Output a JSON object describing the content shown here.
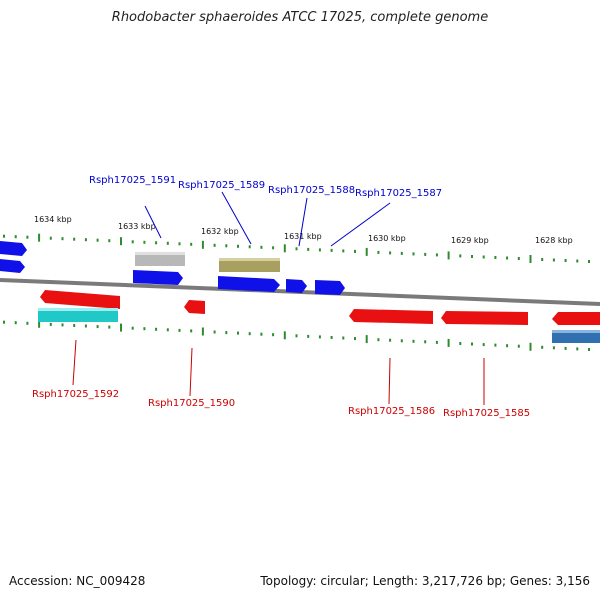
{
  "header": {
    "title": "Rhodobacter sphaeroides ATCC 17025, complete genome"
  },
  "footer": {
    "accession": "Accession: NC_009428",
    "stats": "Topology: circular; Length: 3,217,726 bp; Genes: 3,156"
  },
  "scale_labels": [
    "1634 kbp",
    "1633 kbp",
    "1632 kbp",
    "1631 kbp",
    "1630 kbp",
    "1629 kbp",
    "1628 kbp"
  ],
  "colors": {
    "plus_strand_label": "#0000cc",
    "minus_strand_label": "#cc0000",
    "backbone": "#808080",
    "tick": "#2e8b2e",
    "gene_blue": "#1010e8",
    "gene_red": "#e81010",
    "gene_gray": "#b8b8b8",
    "gene_olive": "#a8a060",
    "gene_cyan": "#20c8c8",
    "gene_steel": "#3070b0"
  },
  "genes": {
    "plus_labels": [
      "Rsph17025_1591",
      "Rsph17025_1589",
      "Rsph17025_1588",
      "Rsph17025_1587"
    ],
    "minus_labels": [
      "Rsph17025_1592",
      "Rsph17025_1590",
      "Rsph17025_1586",
      "Rsph17025_1585"
    ]
  }
}
